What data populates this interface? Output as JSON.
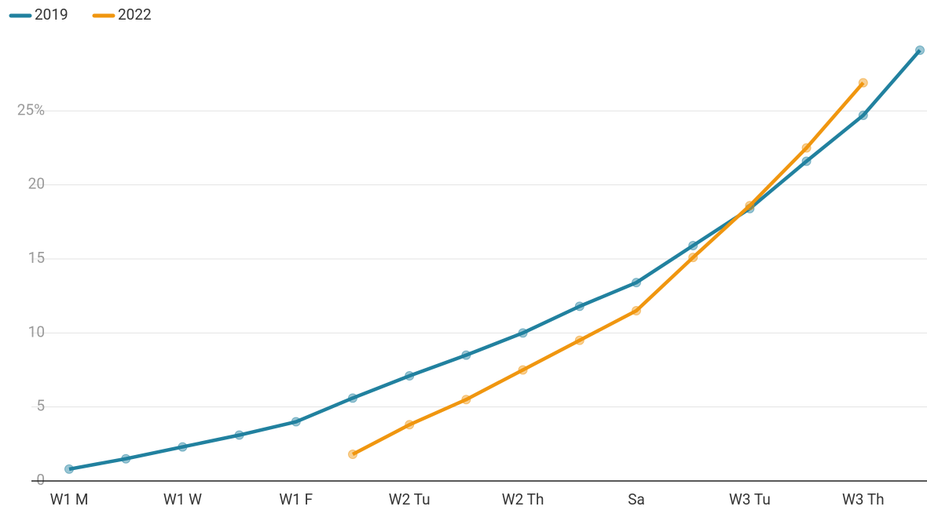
{
  "chart_data": {
    "type": "line",
    "categories": [
      "W1 M",
      null,
      "W1 W",
      null,
      "W1 F",
      null,
      "W2 Tu",
      null,
      "W2 Th",
      null,
      "Sa",
      null,
      "W3 Tu",
      null,
      "W3 Th",
      null
    ],
    "series": [
      {
        "name": "2019",
        "color": "#21819f",
        "values": [
          0.8,
          1.5,
          2.3,
          3.1,
          4.0,
          5.6,
          7.1,
          8.5,
          10.0,
          11.8,
          13.4,
          15.9,
          18.4,
          21.6,
          24.7,
          29.1
        ]
      },
      {
        "name": "2022",
        "color": "#f0960f",
        "values": [
          null,
          null,
          null,
          null,
          null,
          1.8,
          3.8,
          5.5,
          7.5,
          9.5,
          11.5,
          15.1,
          18.6,
          22.5,
          26.9,
          null
        ]
      }
    ],
    "ylim": [
      0,
      30
    ],
    "yticks": [
      0,
      5,
      10,
      15,
      20,
      {
        "value": 25,
        "label": "25%"
      }
    ],
    "grid": true,
    "legend": "top-left"
  }
}
